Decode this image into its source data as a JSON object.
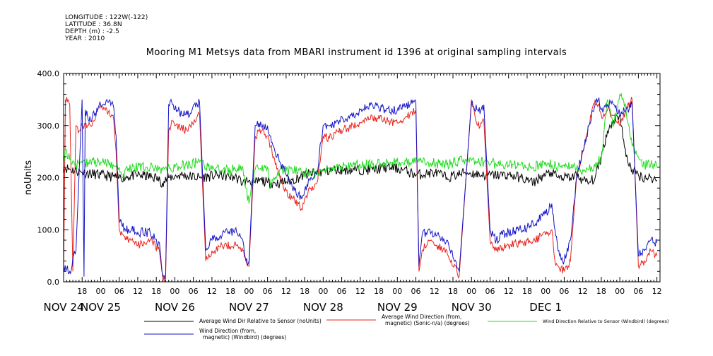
{
  "meta": {
    "longitude": "LONGITUDE : 122W(-122)",
    "latitude": "LATITUDE : 36.8N",
    "depth": "DEPTH (m) : -2.5",
    "year": "YEAR : 2010"
  },
  "chart_data": {
    "type": "line",
    "title": "Mooring M1 Metsys data from MBARI instrument id 1396 at original sampling intervals",
    "ylabel": "noUnits",
    "xlabel": "",
    "ylim": [
      0,
      400
    ],
    "yticks": [
      0,
      100,
      200,
      300,
      400
    ],
    "xlim": [
      12,
      205
    ],
    "hour_ticks": [
      {
        "x": 18,
        "label": "18"
      },
      {
        "x": 24,
        "label": "00"
      },
      {
        "x": 30,
        "label": "06"
      },
      {
        "x": 36,
        "label": "12"
      },
      {
        "x": 42,
        "label": "18"
      },
      {
        "x": 48,
        "label": "00"
      },
      {
        "x": 54,
        "label": "06"
      },
      {
        "x": 60,
        "label": "12"
      },
      {
        "x": 66,
        "label": "18"
      },
      {
        "x": 72,
        "label": "00"
      },
      {
        "x": 78,
        "label": "06"
      },
      {
        "x": 84,
        "label": "12"
      },
      {
        "x": 90,
        "label": "18"
      },
      {
        "x": 96,
        "label": "00"
      },
      {
        "x": 102,
        "label": "06"
      },
      {
        "x": 108,
        "label": "12"
      },
      {
        "x": 114,
        "label": "18"
      },
      {
        "x": 120,
        "label": "00"
      },
      {
        "x": 126,
        "label": "06"
      },
      {
        "x": 132,
        "label": "12"
      },
      {
        "x": 138,
        "label": "18"
      },
      {
        "x": 144,
        "label": "00"
      },
      {
        "x": 150,
        "label": "06"
      },
      {
        "x": 156,
        "label": "12"
      },
      {
        "x": 162,
        "label": "18"
      },
      {
        "x": 168,
        "label": "00"
      },
      {
        "x": 174,
        "label": "06"
      },
      {
        "x": 180,
        "label": "12"
      },
      {
        "x": 186,
        "label": "18"
      },
      {
        "x": 192,
        "label": "00"
      },
      {
        "x": 198,
        "label": "06"
      },
      {
        "x": 204,
        "label": "12"
      }
    ],
    "day_labels": [
      {
        "x": 12,
        "label": "NOV 24"
      },
      {
        "x": 24,
        "label": "NOV 25"
      },
      {
        "x": 48,
        "label": "NOV 26"
      },
      {
        "x": 72,
        "label": "NOV 27"
      },
      {
        "x": 96,
        "label": "NOV 28"
      },
      {
        "x": 120,
        "label": "NOV 29"
      },
      {
        "x": 144,
        "label": "NOV 30"
      },
      {
        "x": 168,
        "label": "DEC  1"
      }
    ],
    "series": [
      {
        "name": "Average Wind Dir Relative to Sensor (noUnits)",
        "color": "#000000",
        "noise": 10,
        "x": [
          12,
          18,
          24,
          30,
          36,
          42,
          44,
          46,
          50,
          56,
          62,
          68,
          70,
          72,
          74,
          76,
          78,
          82,
          86,
          90,
          94,
          100,
          106,
          112,
          118,
          122,
          126,
          132,
          136,
          142,
          148,
          156,
          160,
          162,
          164,
          166,
          168,
          170,
          172,
          174,
          176,
          178,
          180,
          182,
          184,
          186,
          188,
          190,
          192,
          194,
          196,
          198,
          200,
          202,
          204
        ],
        "y": [
          220,
          210,
          205,
          200,
          205,
          200,
          190,
          200,
          205,
          200,
          205,
          200,
          190,
          195,
          190,
          195,
          190,
          190,
          195,
          205,
          210,
          215,
          215,
          215,
          220,
          215,
          205,
          210,
          200,
          210,
          205,
          205,
          200,
          195,
          190,
          200,
          205,
          210,
          200,
          200,
          200,
          205,
          195,
          190,
          200,
          240,
          290,
          310,
          320,
          240,
          215,
          205,
          200,
          200,
          195
        ]
      },
      {
        "name": "Average Wind Direction (from, magnetic) (Sonic-n/a) (degrees)",
        "color": "#e8231c",
        "noise": 8,
        "x": [
          12,
          12.6,
          13,
          14,
          15,
          16,
          17,
          18,
          20,
          22,
          24,
          26,
          28,
          29,
          30,
          32,
          34,
          36,
          40,
          43,
          44,
          45,
          46,
          47,
          48,
          52,
          56,
          58,
          60,
          64,
          68,
          70,
          71,
          72,
          74,
          76,
          78,
          79,
          80,
          82,
          84,
          86,
          88,
          89,
          90,
          92,
          94,
          96,
          98,
          100,
          104,
          108,
          112,
          116,
          120,
          124,
          126,
          127,
          128,
          130,
          131,
          132,
          136,
          140,
          144,
          146,
          147,
          148,
          150,
          152,
          154,
          156,
          160,
          164,
          168,
          170,
          171,
          172,
          174,
          176,
          178,
          180,
          182,
          184,
          185,
          186,
          188,
          190,
          192,
          194,
          196,
          198,
          200,
          202,
          204
        ],
        "y": [
          10,
          350,
          355,
          340,
          20,
          300,
          290,
          300,
          300,
          310,
          340,
          330,
          320,
          250,
          100,
          80,
          80,
          70,
          80,
          60,
          10,
          5,
          290,
          310,
          300,
          290,
          320,
          40,
          60,
          70,
          70,
          60,
          40,
          30,
          280,
          290,
          280,
          260,
          240,
          200,
          175,
          160,
          150,
          140,
          160,
          180,
          190,
          280,
          275,
          285,
          295,
          305,
          315,
          310,
          305,
          320,
          330,
          20,
          60,
          80,
          80,
          70,
          60,
          10,
          350,
          300,
          305,
          310,
          80,
          60,
          65,
          70,
          75,
          80,
          90,
          100,
          40,
          30,
          20,
          40,
          200,
          250,
          300,
          350,
          340,
          320,
          330,
          320,
          300,
          330,
          350,
          30,
          40,
          60,
          50
        ]
      },
      {
        "name": "Wind Direction Relative to Sensor (Windbird) (degrees)",
        "color": "#1edb1e",
        "noise": 10,
        "x": [
          12,
          13,
          14,
          16,
          20,
          24,
          28,
          30,
          31,
          32,
          36,
          40,
          44,
          48,
          52,
          56,
          60,
          66,
          70,
          71,
          72,
          74,
          78,
          79,
          80,
          82,
          86,
          90,
          94,
          96,
          100,
          106,
          112,
          118,
          124,
          130,
          136,
          142,
          148,
          154,
          160,
          164,
          168,
          170,
          172,
          174,
          176,
          178,
          180,
          182,
          184,
          186,
          188,
          190,
          192,
          194,
          196,
          198,
          200,
          202,
          204
        ],
        "y": [
          240,
          250,
          235,
          225,
          230,
          230,
          225,
          220,
          200,
          215,
          220,
          220,
          215,
          220,
          225,
          230,
          215,
          215,
          220,
          180,
          150,
          215,
          220,
          180,
          200,
          215,
          215,
          210,
          205,
          215,
          220,
          225,
          225,
          230,
          230,
          230,
          225,
          235,
          230,
          225,
          225,
          220,
          230,
          225,
          220,
          225,
          220,
          220,
          215,
          215,
          220,
          240,
          350,
          300,
          360,
          330,
          260,
          240,
          225,
          225,
          220
        ]
      },
      {
        "name": "Wind Direction (from, magnetic) (Windbird) (degrees)",
        "color": "#1414c8",
        "noise": 9,
        "x": [
          12,
          14,
          16,
          18,
          18.6,
          19,
          20,
          22,
          24,
          26,
          28,
          29,
          30,
          32,
          34,
          36,
          40,
          43,
          44,
          45,
          46,
          47,
          48,
          52,
          56,
          58,
          60,
          64,
          68,
          70,
          71,
          72,
          74,
          76,
          78,
          79,
          80,
          82,
          84,
          86,
          88,
          89,
          90,
          92,
          94,
          96,
          98,
          100,
          104,
          108,
          112,
          116,
          120,
          124,
          126,
          127,
          128,
          130,
          131,
          132,
          136,
          140,
          144,
          146,
          147,
          148,
          150,
          152,
          154,
          156,
          160,
          164,
          168,
          170,
          171,
          172,
          174,
          176,
          178,
          180,
          182,
          184,
          185,
          186,
          188,
          190,
          192,
          194,
          196,
          198,
          200,
          202,
          204
        ],
        "y": [
          30,
          20,
          60,
          350,
          10,
          330,
          310,
          320,
          340,
          350,
          340,
          280,
          120,
          100,
          100,
          95,
          95,
          75,
          15,
          10,
          340,
          345,
          330,
          320,
          345,
          60,
          80,
          95,
          95,
          80,
          40,
          40,
          300,
          300,
          300,
          280,
          260,
          230,
          205,
          180,
          170,
          160,
          175,
          200,
          210,
          300,
          300,
          305,
          315,
          330,
          340,
          330,
          330,
          340,
          345,
          30,
          90,
          100,
          95,
          90,
          80,
          20,
          345,
          330,
          330,
          340,
          100,
          80,
          90,
          95,
          100,
          110,
          130,
          150,
          100,
          60,
          40,
          80,
          200,
          250,
          300,
          340,
          350,
          330,
          340,
          340,
          320,
          330,
          340,
          50,
          60,
          80,
          75
        ]
      }
    ],
    "legend": [
      "Average Wind Dir Relative to Sensor (noUnits)",
      "Average Wind Direction (from, magnetic) (Sonic-n/a) (degrees)",
      "Wind Direction Relative to Sensor (Windbird) (degrees)",
      "Wind Direction (from, magnetic) (Windbird) (degrees)"
    ],
    "legend_lines": [
      [
        "Average Wind Dir Relative to Sensor (noUnits)"
      ],
      [
        "Average Wind Direction (from,",
        "magnetic) (Sonic-n/a) (degrees)"
      ],
      [
        "Wind Direction Relative to Sensor (Windbird) (degrees)"
      ],
      [
        "Wind Direction (from,",
        "magnetic) (Windbird) (degrees)"
      ]
    ],
    "legend_placement": "bottom",
    "grid": false
  }
}
